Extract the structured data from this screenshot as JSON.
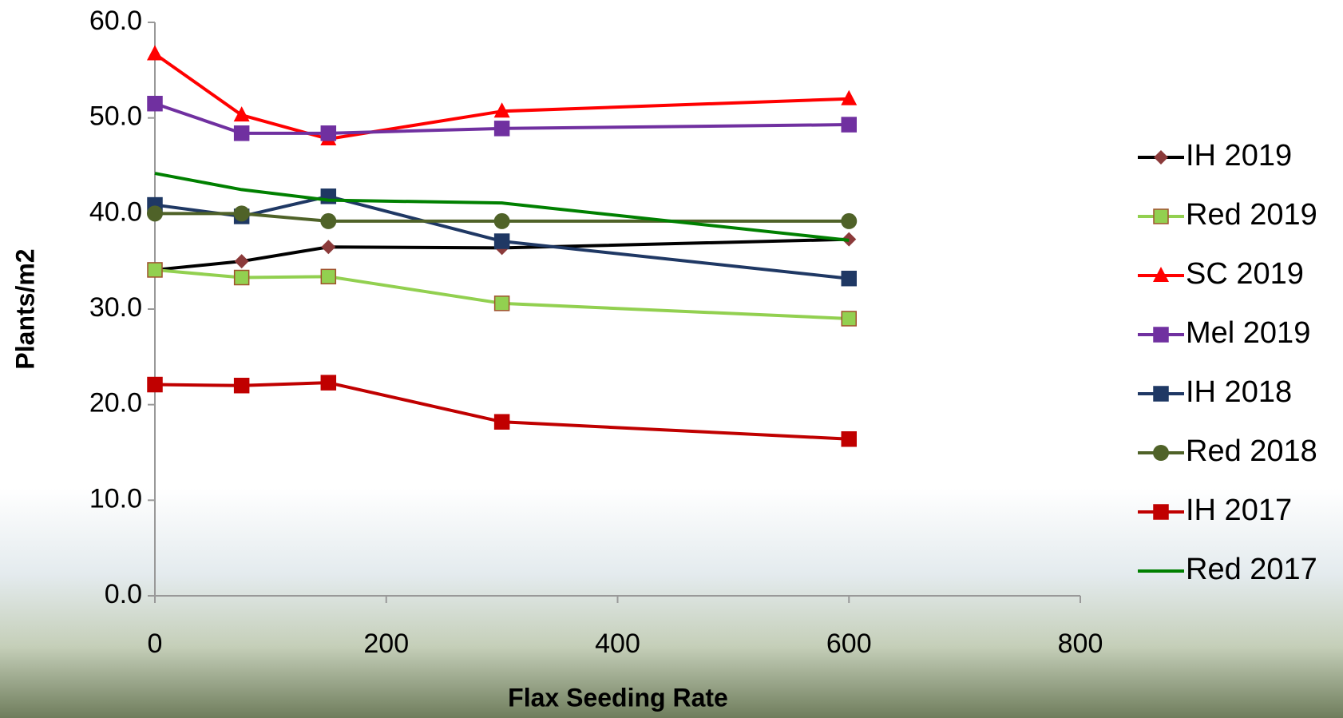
{
  "chart_data": {
    "type": "line",
    "x_label": "Flax Seeding Rate",
    "y_label": "Plants/m2",
    "x": [
      0,
      75,
      150,
      300,
      600
    ],
    "xlim": [
      0,
      800
    ],
    "xticks": [
      0,
      200,
      400,
      600,
      800
    ],
    "ylim": [
      0,
      60
    ],
    "yticks": [
      {
        "value": 0,
        "label": "0.0"
      },
      {
        "value": 10,
        "label": "10.0"
      },
      {
        "value": 20,
        "label": "20.0"
      },
      {
        "value": 30,
        "label": "30.0"
      },
      {
        "value": 40,
        "label": "40.0"
      },
      {
        "value": 50,
        "label": "50.0"
      },
      {
        "value": 60,
        "label": "60.0"
      }
    ],
    "series": [
      {
        "name": "IH 2019",
        "color": "#000000",
        "marker": "diamond",
        "marker_color": "#8b3a3a",
        "values": [
          34.1,
          35.0,
          36.5,
          36.4,
          37.3
        ]
      },
      {
        "name": "Red 2019",
        "color": "#92d050",
        "marker": "square",
        "marker_color": "#92d050",
        "values": [
          34.1,
          33.3,
          33.4,
          30.6,
          29.0
        ]
      },
      {
        "name": "SC 2019",
        "color": "#ff0000",
        "marker": "triangle",
        "marker_color": "#ff0000",
        "values": [
          56.7,
          50.3,
          47.8,
          50.7,
          52.0
        ]
      },
      {
        "name": "Mel 2019",
        "color": "#7030a0",
        "marker": "square",
        "marker_color": "#7030a0",
        "values": [
          51.5,
          48.4,
          48.4,
          48.9,
          49.3
        ]
      },
      {
        "name": "IH 2018",
        "color": "#1f3864",
        "marker": "square",
        "marker_color": "#1f3864",
        "values": [
          40.9,
          39.7,
          41.8,
          37.1,
          33.2
        ]
      },
      {
        "name": "Red 2018",
        "color": "#4f6228",
        "marker": "circle",
        "marker_color": "#4f6228",
        "values": [
          40.0,
          40.0,
          39.2,
          39.2,
          39.2
        ]
      },
      {
        "name": "IH 2017",
        "color": "#c00000",
        "marker": "square",
        "marker_color": "#c00000",
        "values": [
          22.1,
          22.0,
          22.3,
          18.2,
          16.4
        ]
      },
      {
        "name": "Red 2017",
        "color": "#008000",
        "marker": "none",
        "marker_color": "#008000",
        "values": [
          44.2,
          42.5,
          41.4,
          41.1,
          37.2
        ]
      }
    ]
  }
}
